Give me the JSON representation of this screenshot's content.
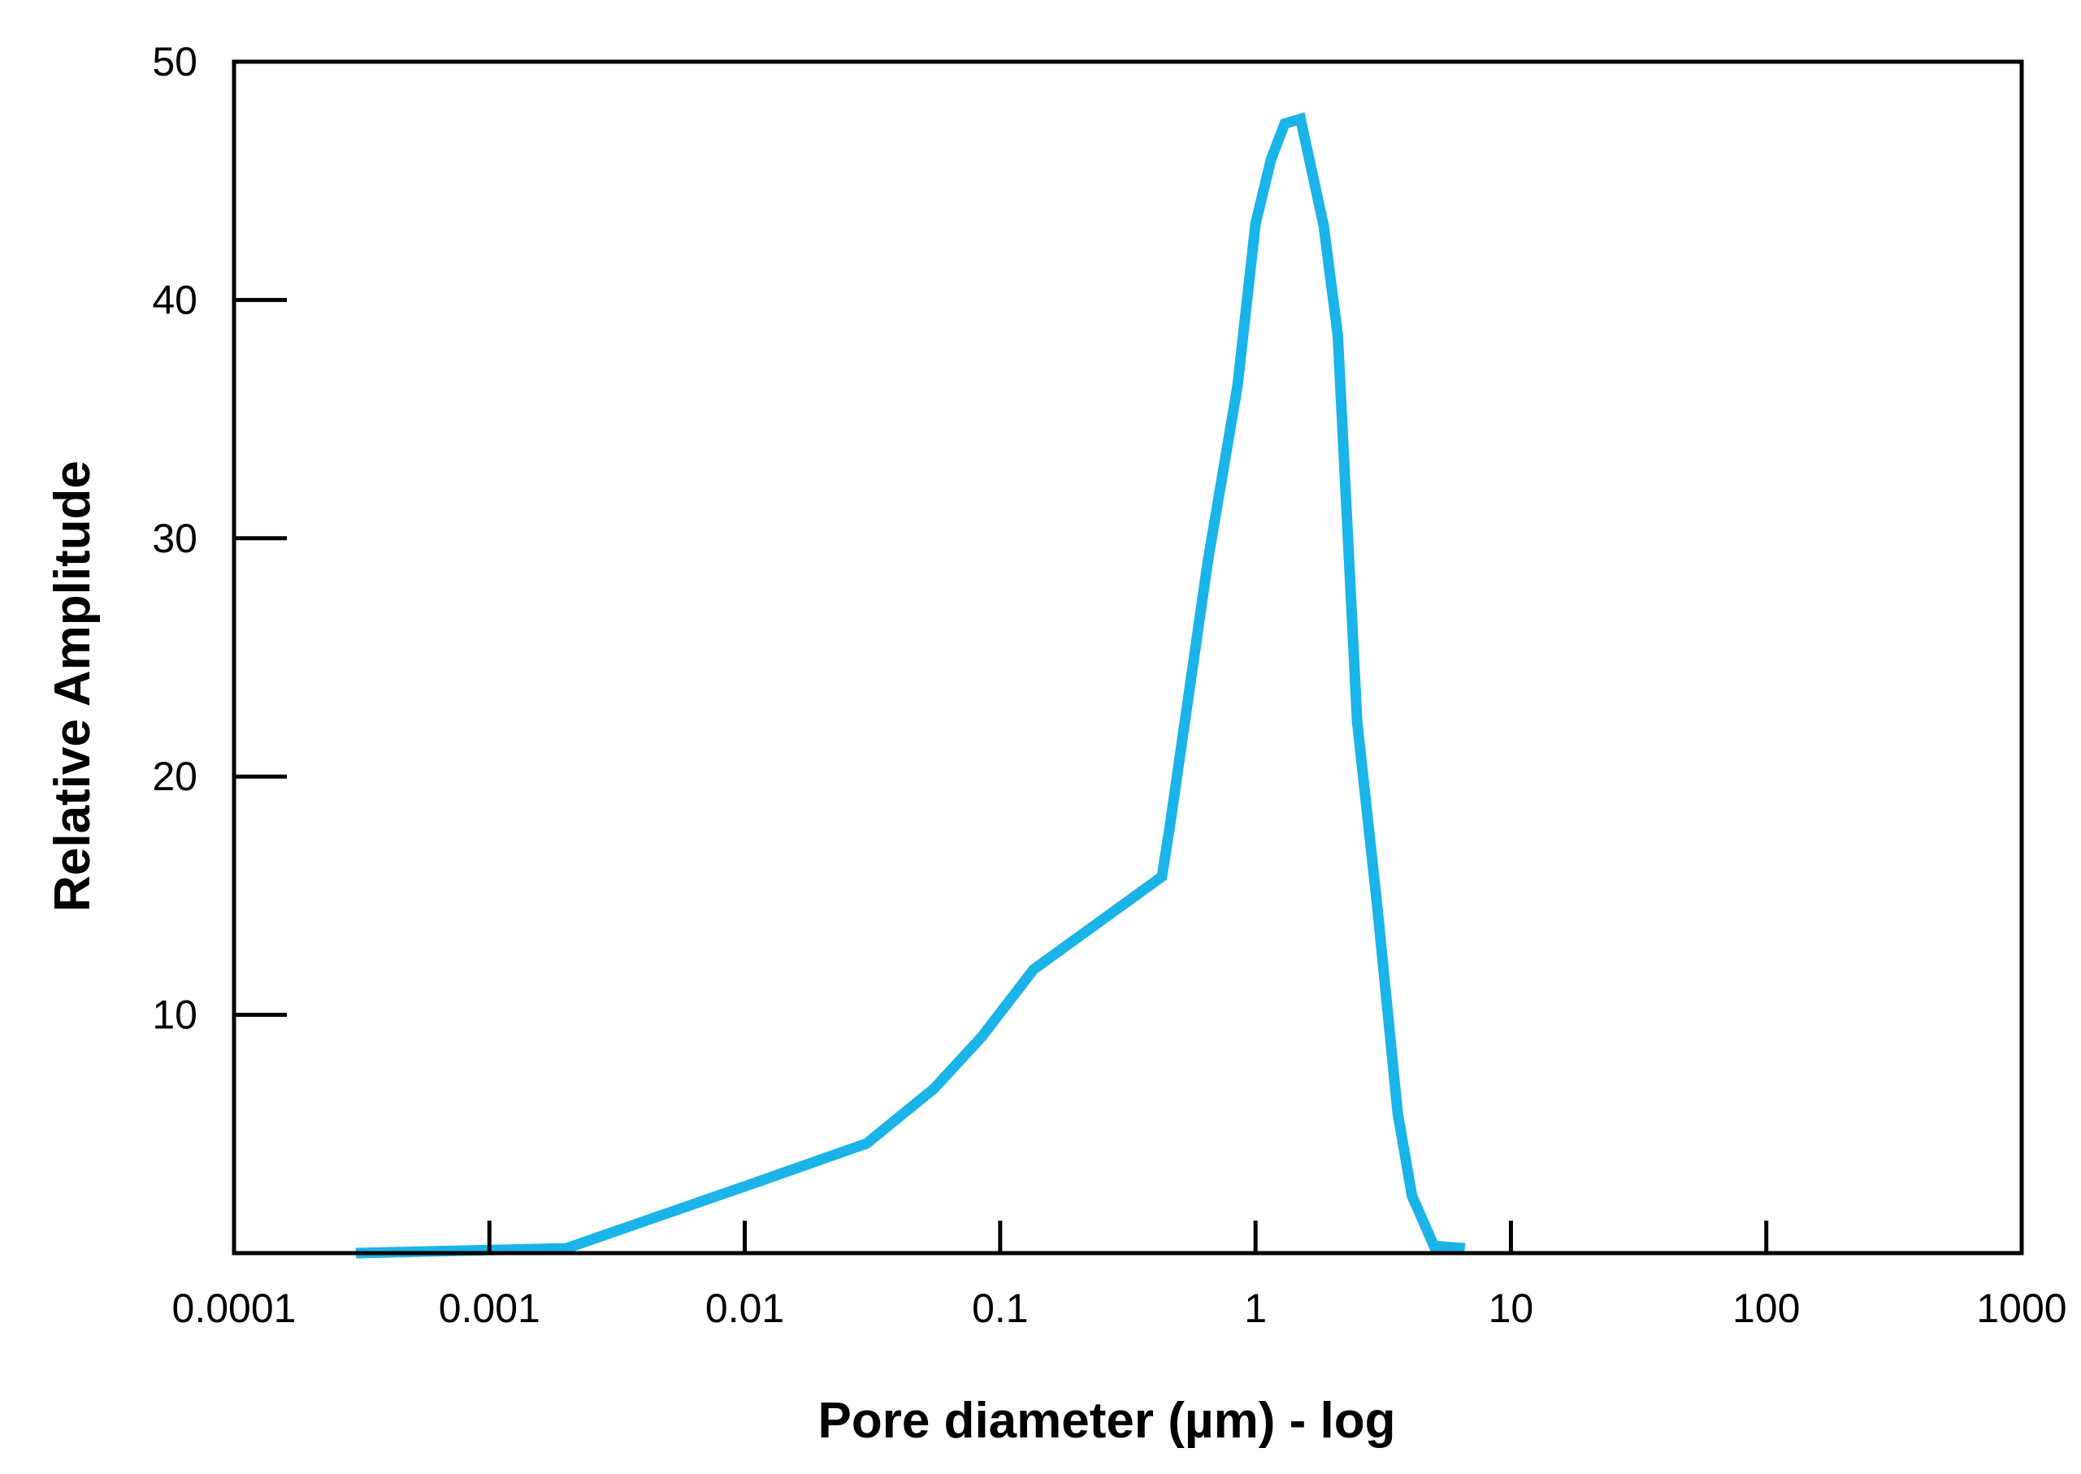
{
  "chart_data": {
    "type": "line",
    "title": "",
    "xlabel": "Pore diameter (µm) - log",
    "ylabel": "Relative Amplitude",
    "x_scale": "log",
    "xlim": [
      0.0001,
      1000
    ],
    "ylim": [
      0,
      50
    ],
    "grid": false,
    "x_ticks": [
      0.0001,
      0.001,
      0.01,
      0.1,
      1,
      10,
      100,
      1000
    ],
    "x_tick_labels": [
      "0.0001",
      "0.001",
      "0.01",
      "0.1",
      "1",
      "10",
      "100",
      "1000"
    ],
    "y_ticks": [
      10,
      20,
      30,
      40,
      50
    ],
    "y_tick_labels": [
      "10",
      "20",
      "30",
      "40",
      "50"
    ],
    "colors": {
      "series": "#1ab4e8",
      "axis": "#000000",
      "background": "#ffffff"
    },
    "series": [
      {
        "x": [
          0.0003,
          0.002,
          0.01,
          0.03,
          0.055,
          0.085,
          0.135,
          0.43,
          0.46,
          0.65,
          0.85,
          1.0,
          1.15,
          1.3,
          1.5,
          1.85,
          2.1,
          2.5,
          3.0,
          3.6,
          4.1,
          5.0,
          6.6
        ],
        "y": [
          0,
          0.2,
          2.8,
          4.6,
          6.9,
          9.1,
          11.9,
          15.8,
          17.8,
          29.0,
          36.4,
          43.2,
          45.9,
          47.4,
          47.6,
          43.1,
          38.5,
          22.3,
          14.5,
          5.9,
          2.4,
          0.3,
          0.2
        ]
      }
    ]
  }
}
